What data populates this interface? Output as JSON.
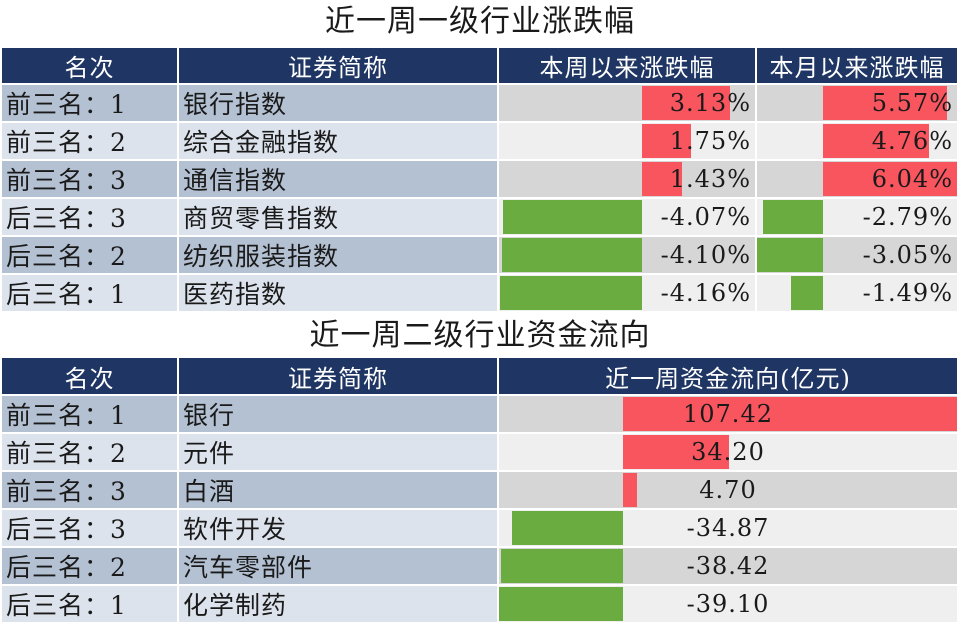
{
  "table1": {
    "title": "近一周一级行业涨跌幅",
    "headers": [
      "名次",
      "证券简称",
      "本周以来涨跌幅",
      "本月以来涨跌幅"
    ],
    "rows": [
      {
        "rank": "前三名：1",
        "name": "银行指数",
        "week": "3.13%",
        "week_value": 3.13,
        "month": "5.57%",
        "month_value": 5.57
      },
      {
        "rank": "前三名：2",
        "name": "综合金融指数",
        "week": "1.75%",
        "week_value": 1.75,
        "month": "4.76%",
        "month_value": 4.76
      },
      {
        "rank": "前三名：3",
        "name": "通信指数",
        "week": "1.43%",
        "week_value": 1.43,
        "month": "6.04%",
        "month_value": 6.04
      },
      {
        "rank": "后三名：3",
        "name": "商贸零售指数",
        "week": "-4.07%",
        "week_value": -4.07,
        "month": "-2.79%",
        "month_value": -2.79
      },
      {
        "rank": "后三名：2",
        "name": "纺织服装指数",
        "week": "-4.10%",
        "week_value": -4.1,
        "month": "-3.05%",
        "month_value": -3.05
      },
      {
        "rank": "后三名：1",
        "name": "医药指数",
        "week": "-4.16%",
        "week_value": -4.16,
        "month": "-1.49%",
        "month_value": -1.49
      }
    ]
  },
  "table2": {
    "title": "近一周二级行业资金流向",
    "headers": [
      "名次",
      "证券简称",
      "近一周资金流向(亿元)"
    ],
    "rows": [
      {
        "rank": "前三名：1",
        "name": "银行",
        "flow": "107.42",
        "flow_value": 107.42
      },
      {
        "rank": "前三名：2",
        "name": "元件",
        "flow": "34.20",
        "flow_value": 34.2
      },
      {
        "rank": "前三名：3",
        "name": "白酒",
        "flow": "4.70",
        "flow_value": 4.7
      },
      {
        "rank": "后三名：3",
        "name": "软件开发",
        "flow": "-34.87",
        "flow_value": -34.87
      },
      {
        "rank": "后三名：2",
        "name": "汽车零部件",
        "flow": "-38.42",
        "flow_value": -38.42
      },
      {
        "rank": "后三名：1",
        "name": "化学制药",
        "flow": "-39.10",
        "flow_value": -39.1
      }
    ]
  },
  "colors": {
    "header_bg": "#1f3664",
    "positive": "#f8555f",
    "negative": "#6aac3f"
  }
}
